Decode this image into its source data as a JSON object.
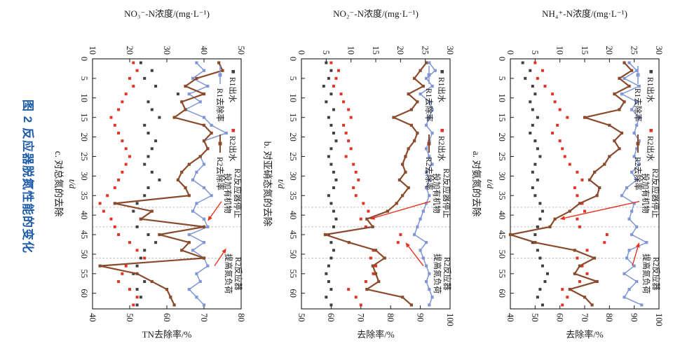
{
  "figure": {
    "title": "图 2  反应器脱氮性能的变化",
    "title_color": "#1d5bab"
  },
  "colors": {
    "r1_effluent": "#3f3f3f",
    "r2_effluent": "#e03426",
    "r1_rate": "#8096d5",
    "r2_rate": "#8a4b2d",
    "annotation": "#e8321f",
    "dashed": "#b5b5b5",
    "axis": "#1a1a1a",
    "text": "#1a1a1a"
  },
  "legend": {
    "r1_effluent": "R1出水",
    "r2_effluent": "R2出水",
    "r1_rate": "R1去除率",
    "r2_rate": "R2去除率"
  },
  "annotations": {
    "stop_organics": [
      "R2反应器停止",
      "投加有机物"
    ],
    "raise_load": [
      "R2反应器",
      "提高氮负荷"
    ]
  },
  "time": {
    "label": "t/d",
    "min": 0,
    "max": 64,
    "ticks": [
      0,
      5,
      10,
      15,
      20,
      25,
      30,
      35,
      40,
      45,
      50,
      55,
      60
    ],
    "dashed_lines": [
      38,
      43,
      51
    ]
  },
  "chart_data": {
    "type": "line",
    "x_axis": "t/d",
    "t": [
      1,
      3,
      5,
      7,
      9,
      11,
      13,
      15,
      17,
      19,
      21,
      23,
      25,
      27,
      29,
      31,
      33,
      35,
      37,
      39,
      41,
      43,
      45,
      47,
      49,
      51,
      53,
      55,
      57,
      59,
      61,
      63
    ],
    "panels": [
      {
        "id": "a",
        "caption": "a. 对氨氮的去除",
        "conc_axis": {
          "label": "NH₄⁺-N浓度/(mg·L⁻¹)",
          "min": 0,
          "max": 30,
          "ticks": [
            0,
            5,
            10,
            15,
            20,
            25,
            30
          ]
        },
        "rate_axis": {
          "label": "去除率/%",
          "min": 40,
          "max": 100,
          "ticks": [
            40,
            50,
            60,
            70,
            80,
            90,
            100
          ]
        },
        "series": [
          {
            "name": "R1出水",
            "type": "scatter",
            "axis": "conc",
            "color_key": "r1_effluent",
            "values": [
              2.5,
              4,
              3,
              4.5,
              5,
              4,
              4.5,
              5.5,
              4.5,
              4,
              5,
              5.5,
              6,
              5,
              4.5,
              5.5,
              4.5,
              5,
              6,
              6.5,
              6,
              5.5,
              5,
              4.5,
              5.5,
              6,
              6.5,
              7.5,
              7,
              6,
              5.5,
              6.5
            ]
          },
          {
            "name": "R2出水",
            "type": "scatter",
            "axis": "conc",
            "color_key": "r2_effluent",
            "values": [
              5,
              6.5,
              5.5,
              7,
              8.5,
              9,
              10,
              11.5,
              9.5,
              8.5,
              10,
              10.5,
              11,
              12,
              13.5,
              14.5,
              13,
              13.5,
              14.5,
              15,
              13.5,
              14,
              19.5,
              19,
              15.5,
              13.5,
              14.5,
              15.5,
              14,
              10.5,
              11.5,
              10.5
            ]
          },
          {
            "name": "R1去除率",
            "type": "line",
            "axis": "rate",
            "color_key": "r1_rate",
            "values": [
              88,
              91,
              86,
              92,
              85,
              91,
              89,
              92,
              91,
              90,
              92,
              91,
              90,
              92,
              89,
              91,
              87,
              85,
              90,
              89,
              88,
              91,
              89,
              95,
              88,
              87,
              90,
              86,
              91,
              88,
              86,
              93
            ]
          },
          {
            "name": "R2去除率",
            "type": "line",
            "axis": "rate",
            "color_key": "r2_rate",
            "values": [
              86,
              89,
              84,
              88,
              82,
              86,
              84,
              70,
              80,
              85,
              82,
              84,
              80,
              78,
              74,
              72,
              76,
              75,
              68,
              64,
              58,
              56,
              40,
              50,
              66,
              74,
              68,
              66,
              75,
              64,
              70,
              73
            ]
          }
        ],
        "arrow1": {
          "t": 41,
          "rate": 60
        },
        "arrow2": {
          "t": 47,
          "rate": 92
        }
      },
      {
        "id": "b",
        "caption": "b. 对亚硝态氮的去除",
        "conc_axis": {
          "label": "NO₂⁻-N浓度/(mg·L⁻¹)",
          "min": 0,
          "max": 30,
          "ticks": [
            0,
            5,
            10,
            15,
            20,
            25,
            30
          ]
        },
        "rate_axis": {
          "label": "去除率/%",
          "min": 50,
          "max": 100,
          "ticks": [
            50,
            60,
            70,
            80,
            90,
            100
          ]
        },
        "series": [
          {
            "name": "R1出水",
            "type": "scatter",
            "axis": "conc",
            "color_key": "r1_effluent",
            "values": [
              5,
              6,
              5.5,
              4.5,
              6,
              5,
              6.5,
              5.5,
              6,
              6.5,
              7,
              6,
              5.5,
              6,
              6.5,
              7,
              6.5,
              5.5,
              6,
              6.5,
              7,
              6.5,
              5.5,
              6,
              6.5,
              6,
              5.5,
              5,
              5.5,
              6,
              5,
              6
            ]
          },
          {
            "name": "R2出水",
            "type": "scatter",
            "axis": "conc",
            "color_key": "r2_effluent",
            "values": [
              6,
              7.5,
              7,
              6.5,
              8,
              8.5,
              9.5,
              10,
              8.5,
              9,
              9.5,
              10,
              9,
              10.5,
              11,
              11.5,
              10.5,
              11,
              12.5,
              13.5,
              12,
              13,
              20,
              19.5,
              14.5,
              14,
              15,
              14.5,
              13,
              9.5,
              11,
              12
            ]
          },
          {
            "name": "R1去除率",
            "type": "line",
            "axis": "rate",
            "color_key": "r1_rate",
            "values": [
              93,
              95,
              92,
              94,
              90,
              93,
              94,
              93,
              92,
              94,
              93,
              92,
              93,
              94,
              92,
              93,
              92,
              93,
              92,
              91,
              90,
              89,
              88,
              92,
              90,
              91,
              92,
              93,
              92,
              93,
              94,
              93
            ]
          },
          {
            "name": "R2去除率",
            "type": "line",
            "axis": "rate",
            "color_key": "r2_rate",
            "values": [
              92,
              90,
              88,
              91,
              86,
              89,
              87,
              81,
              87,
              89,
              88,
              86,
              85,
              84,
              85,
              83,
              86,
              84,
              82,
              79,
              72,
              74,
              58,
              66,
              75,
              78,
              74,
              75,
              76,
              72,
              84,
              87
            ]
          }
        ],
        "arrow1": {
          "t": 41,
          "rate": 73
        },
        "arrow2": {
          "t": 47,
          "rate": 85
        }
      },
      {
        "id": "c",
        "caption": "c. 对总氮的去除",
        "conc_axis": {
          "label": "NO₃⁻-N浓度/(mg·L⁻¹)",
          "min": 10,
          "max": 50,
          "ticks": [
            10,
            20,
            30,
            40,
            50
          ]
        },
        "rate_axis": {
          "label": "TN去除率/%",
          "min": 40,
          "max": 80,
          "ticks": [
            40,
            50,
            60,
            70,
            80
          ]
        },
        "series": [
          {
            "name": "R1出水",
            "type": "scatter",
            "axis": "conc",
            "color_key": "r1_effluent",
            "values": [
              23,
              26,
              24,
              27,
              33,
              25,
              26,
              28,
              24,
              25,
              27,
              26,
              25,
              24,
              26,
              28,
              25,
              24,
              22,
              21,
              23,
              22,
              25,
              27,
              24,
              23,
              22,
              21,
              24,
              22,
              23,
              22
            ]
          },
          {
            "name": "R2出水",
            "type": "scatter",
            "axis": "conc",
            "color_key": "r2_effluent",
            "values": [
              21,
              22,
              20,
              21,
              19,
              18,
              17,
              15,
              16,
              17,
              18,
              19,
              20,
              19,
              18,
              17,
              16,
              14,
              12,
              13,
              15,
              16,
              17,
              20,
              22,
              24,
              19,
              18,
              17,
              20,
              22,
              21
            ]
          },
          {
            "name": "R1去除率",
            "type": "line",
            "axis": "rate",
            "color_key": "r1_rate",
            "values": [
              68,
              70,
              67,
              71,
              66,
              69,
              65,
              70,
              72,
              76,
              70,
              71,
              69,
              70,
              68,
              67,
              70,
              72,
              68,
              67,
              70,
              71,
              66,
              70,
              67,
              70,
              71,
              68,
              69,
              66,
              68,
              70
            ]
          },
          {
            "name": "R2去除率",
            "type": "line",
            "axis": "rate",
            "color_key": "r2_rate",
            "values": [
              74,
              75,
              68,
              65,
              70,
              64,
              65,
              62,
              70,
              72,
              70,
              71,
              69,
              66,
              64,
              63,
              65,
              66,
              46,
              56,
              53,
              70,
              58,
              66,
              64,
              70,
              42,
              52,
              56,
              60,
              61,
              62
            ]
          }
        ],
        "arrow1": {
          "t": 41.5,
          "rate": 71
        },
        "arrow2": {
          "t": 48.5,
          "rate": 76
        }
      }
    ]
  }
}
